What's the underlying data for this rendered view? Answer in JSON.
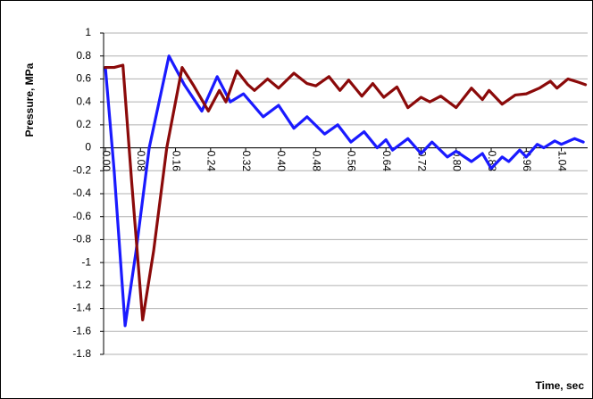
{
  "chart_data": {
    "type": "line",
    "xlabel": "Time, sec",
    "ylabel": "Pressure, MPa",
    "xlim": [
      0,
      1.1
    ],
    "ylim": [
      -1.8,
      1
    ],
    "xticks": [
      {
        "value": 0,
        "label": "0.00"
      },
      {
        "value": 0.08,
        "label": "0.08"
      },
      {
        "value": 0.16,
        "label": "0.16"
      },
      {
        "value": 0.24,
        "label": "0.24"
      },
      {
        "value": 0.32,
        "label": "0.32"
      },
      {
        "value": 0.4,
        "label": "0.40"
      },
      {
        "value": 0.48,
        "label": "0.48"
      },
      {
        "value": 0.56,
        "label": "0.56"
      },
      {
        "value": 0.64,
        "label": "0.64"
      },
      {
        "value": 0.72,
        "label": "0.72"
      },
      {
        "value": 0.8,
        "label": "0.80"
      },
      {
        "value": 0.88,
        "label": "0.88"
      },
      {
        "value": 0.96,
        "label": "0.96"
      },
      {
        "value": 1.04,
        "label": "1.04"
      }
    ],
    "yticks": [
      1,
      0.8,
      0.6,
      0.4,
      0.2,
      0,
      -0.2,
      -0.4,
      -0.6,
      -0.8,
      -1,
      -1.2,
      -1.4,
      -1.6,
      -1.8
    ],
    "grid": true,
    "series": [
      {
        "color": "#1a1aff",
        "x": [
          0,
          0.02,
          0.045,
          0.07,
          0.1,
          0.145,
          0.18,
          0.22,
          0.255,
          0.285,
          0.315,
          0.36,
          0.395,
          0.43,
          0.46,
          0.5,
          0.53,
          0.56,
          0.59,
          0.62,
          0.64,
          0.655,
          0.69,
          0.72,
          0.745,
          0.78,
          0.8,
          0.835,
          0.86,
          0.88,
          0.905,
          0.92,
          0.945,
          0.96,
          0.985,
          1.0,
          1.025,
          1.04,
          1.07,
          1.09
        ],
        "values": [
          0.7,
          -0.2,
          -1.55,
          -0.9,
          0.0,
          0.8,
          0.55,
          0.32,
          0.62,
          0.4,
          0.47,
          0.27,
          0.37,
          0.17,
          0.27,
          0.12,
          0.2,
          0.05,
          0.14,
          0.0,
          0.07,
          -0.02,
          0.08,
          -0.05,
          0.05,
          -0.08,
          -0.03,
          -0.12,
          -0.05,
          -0.18,
          -0.08,
          -0.12,
          -0.02,
          -0.08,
          0.03,
          0.0,
          0.06,
          0.03,
          0.08,
          0.05
        ]
      },
      {
        "color": "#8b0a0a",
        "x": [
          0,
          0.02,
          0.04,
          0.06,
          0.085,
          0.11,
          0.14,
          0.175,
          0.2,
          0.235,
          0.26,
          0.275,
          0.3,
          0.325,
          0.34,
          0.37,
          0.395,
          0.43,
          0.46,
          0.48,
          0.51,
          0.535,
          0.555,
          0.585,
          0.61,
          0.635,
          0.665,
          0.69,
          0.72,
          0.74,
          0.765,
          0.8,
          0.835,
          0.86,
          0.875,
          0.905,
          0.935,
          0.96,
          0.99,
          1.015,
          1.03,
          1.055,
          1.08,
          1.095
        ],
        "values": [
          0.7,
          0.7,
          0.72,
          -0.3,
          -1.5,
          -0.9,
          0.0,
          0.7,
          0.55,
          0.32,
          0.5,
          0.4,
          0.67,
          0.55,
          0.5,
          0.6,
          0.52,
          0.65,
          0.56,
          0.54,
          0.62,
          0.5,
          0.59,
          0.45,
          0.56,
          0.44,
          0.53,
          0.35,
          0.44,
          0.4,
          0.45,
          0.35,
          0.52,
          0.42,
          0.5,
          0.38,
          0.46,
          0.47,
          0.52,
          0.58,
          0.52,
          0.6,
          0.57,
          0.55
        ]
      }
    ]
  }
}
